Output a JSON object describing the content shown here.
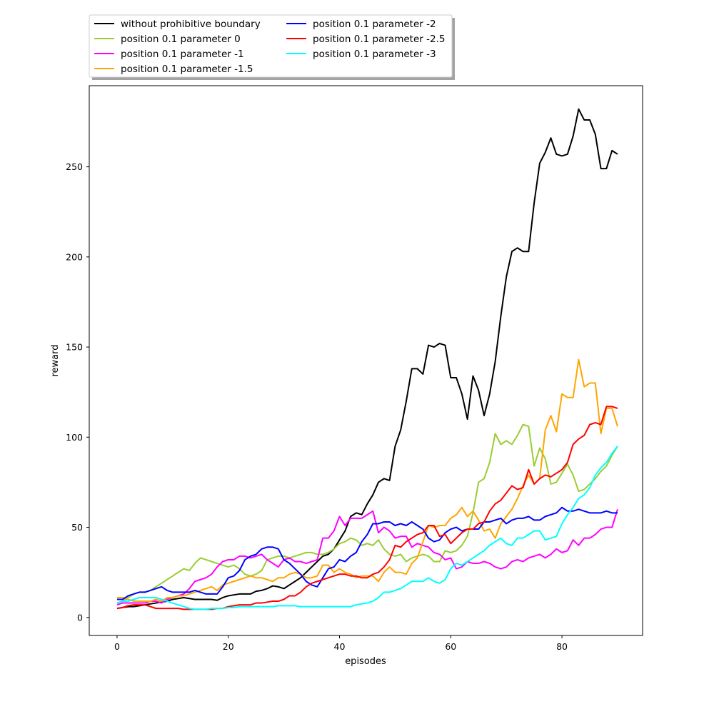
{
  "chart_data": {
    "type": "line",
    "xlabel": "episodes",
    "ylabel": "reward",
    "xlim": [
      -5,
      94.5
    ],
    "ylim": [
      -10,
      295
    ],
    "xticks": [
      0,
      20,
      40,
      60,
      80
    ],
    "yticks": [
      0,
      50,
      100,
      150,
      200,
      250
    ],
    "grid": false,
    "legend_placement": "above the plot, upper-left, two columns, shadowed box",
    "x": [
      0,
      1,
      2,
      3,
      4,
      5,
      6,
      7,
      8,
      9,
      10,
      11,
      12,
      13,
      14,
      15,
      16,
      17,
      18,
      19,
      20,
      21,
      22,
      23,
      24,
      25,
      26,
      27,
      28,
      29,
      30,
      31,
      32,
      33,
      34,
      35,
      36,
      37,
      38,
      39,
      40,
      41,
      42,
      43,
      44,
      45,
      46,
      47,
      48,
      49,
      50,
      51,
      52,
      53,
      54,
      55,
      56,
      57,
      58,
      59,
      60,
      61,
      62,
      63,
      64,
      65,
      66,
      67,
      68,
      69,
      70,
      71,
      72,
      73,
      74,
      75,
      76,
      77,
      78,
      79,
      80,
      81,
      82,
      83,
      84,
      85,
      86,
      87,
      88,
      89,
      90
    ],
    "series": [
      {
        "name": "without prohibitive boundary",
        "color": "#000000",
        "values": [
          5,
          5.5,
          6,
          6,
          6.5,
          7,
          7.5,
          8,
          8.5,
          9,
          10,
          10.5,
          11,
          10.5,
          10,
          10,
          10,
          10,
          9.5,
          11,
          12,
          12.5,
          13,
          13,
          13,
          14.5,
          15,
          16,
          17.5,
          17,
          16,
          18,
          20,
          22,
          25,
          28,
          31,
          34,
          35,
          38,
          43,
          48,
          56,
          58,
          57,
          63,
          68,
          75,
          77,
          76,
          95,
          104,
          120,
          138,
          138,
          135,
          151,
          150,
          152,
          151,
          133,
          133,
          124,
          110,
          134,
          126,
          112,
          124,
          142,
          167,
          189,
          203,
          205,
          203,
          203,
          230,
          252,
          258,
          266,
          257,
          256,
          257,
          267,
          282,
          276,
          276,
          268,
          249,
          249,
          259,
          257
        ]
      },
      {
        "name": "position 0.1 parameter 0",
        "color": "#9acd32",
        "values": [
          8,
          9,
          11,
          13,
          14,
          14,
          15,
          17,
          19,
          21,
          23,
          25,
          27,
          26,
          30,
          33,
          32,
          31,
          30,
          29,
          28,
          29,
          27,
          24,
          23,
          24,
          26,
          32,
          33,
          34,
          34,
          33,
          34,
          35,
          36,
          36,
          35,
          35,
          36,
          38,
          41,
          42,
          44,
          43,
          40,
          41,
          40,
          43,
          38,
          35,
          34,
          35,
          31,
          33,
          34,
          35,
          34,
          31,
          31,
          37,
          36,
          37,
          40,
          45,
          58,
          75,
          77,
          86,
          102,
          96,
          98,
          96,
          101,
          107,
          106,
          84,
          94,
          88,
          74,
          75,
          80,
          85,
          79,
          70,
          71,
          74,
          77,
          81,
          84,
          90,
          95
        ]
      },
      {
        "name": "position 0.1 parameter -1",
        "color": "#ff00ff",
        "values": [
          7,
          8,
          8,
          8,
          8,
          8,
          9,
          9,
          8,
          10,
          11,
          12,
          13,
          16,
          20,
          21,
          22,
          24,
          28,
          31,
          32,
          32,
          34,
          34,
          33,
          34,
          35,
          32,
          30,
          28,
          32,
          33,
          31,
          31,
          30,
          31,
          32,
          44,
          44,
          48,
          56,
          51,
          55,
          55,
          55,
          57,
          59,
          47,
          50,
          48,
          44,
          45,
          45,
          39,
          41,
          40,
          39,
          36,
          35,
          32,
          33,
          27,
          28,
          31,
          30,
          30,
          31,
          30,
          28,
          27,
          28,
          31,
          32,
          31,
          33,
          34,
          35,
          33,
          35,
          38,
          36,
          37,
          43,
          40,
          44,
          44,
          46,
          49,
          50,
          50,
          60
        ]
      },
      {
        "name": "position 0.1 parameter -1.5",
        "color": "#ffa500",
        "values": [
          11,
          11,
          10,
          9,
          9,
          9,
          9,
          10,
          9,
          11,
          11,
          12,
          12,
          13,
          14,
          15,
          16,
          17,
          15,
          18,
          19,
          20,
          21,
          22,
          23,
          22,
          22,
          21,
          20,
          22,
          22,
          24,
          25,
          24,
          22,
          22,
          23,
          29,
          29,
          25,
          27,
          25,
          24,
          22,
          23,
          23,
          23,
          20,
          25,
          28,
          25,
          25,
          24,
          30,
          33,
          42,
          51,
          50,
          51,
          51,
          55,
          57,
          61,
          56,
          59,
          54,
          48,
          49,
          44,
          52,
          56,
          60,
          66,
          73,
          79,
          74,
          77,
          104,
          112,
          103,
          124,
          122,
          122,
          143,
          128,
          130,
          130,
          102,
          116,
          116,
          106
        ]
      },
      {
        "name": "position 0.1 parameter -2",
        "color": "#0000ff",
        "values": [
          10,
          10,
          12,
          13,
          14,
          14,
          15,
          16,
          17,
          15,
          14,
          14,
          14,
          14,
          15,
          14,
          13,
          13,
          13,
          17,
          22,
          23,
          26,
          32,
          34,
          35,
          38,
          39,
          39,
          38,
          32,
          30,
          27,
          24,
          20,
          18,
          17,
          22,
          27,
          28,
          32,
          31,
          34,
          36,
          42,
          46,
          52,
          52,
          53,
          53,
          51,
          52,
          51,
          53,
          51,
          49,
          44,
          42,
          43,
          47,
          49,
          50,
          48,
          49,
          49,
          49,
          53,
          53,
          54,
          55,
          52,
          54,
          55,
          55,
          56,
          54,
          54,
          56,
          57,
          58,
          61,
          59,
          59,
          60,
          59,
          58,
          58,
          58,
          59,
          58,
          58
        ]
      },
      {
        "name": "position 0.1 parameter -2.5",
        "color": "#ff0000",
        "values": [
          5,
          5.5,
          6.5,
          7,
          7,
          7,
          6,
          5,
          5,
          5,
          5,
          5,
          4.5,
          4.5,
          4.5,
          4.5,
          4.5,
          4.5,
          5,
          5,
          6,
          6.5,
          7,
          7,
          7,
          8,
          8,
          8.5,
          9,
          9,
          10,
          12,
          12,
          14,
          17,
          19,
          20,
          21,
          22,
          23,
          24,
          24,
          23,
          23,
          22,
          22,
          24,
          25,
          28,
          32,
          40,
          39,
          42,
          44,
          46,
          47,
          51,
          51,
          45,
          46,
          41,
          44,
          47,
          49,
          49,
          52,
          53,
          59,
          63,
          65,
          69,
          73,
          71,
          72,
          82,
          74,
          77,
          79,
          78,
          80,
          82,
          86,
          96,
          99,
          101,
          107,
          108,
          107,
          117,
          117,
          116
        ]
      },
      {
        "name": "position 0.1 parameter -3",
        "color": "#00ffff",
        "values": [
          8,
          9,
          9,
          10,
          11,
          11,
          11,
          11,
          10,
          9,
          8,
          7,
          6,
          5,
          4.5,
          4.5,
          4.5,
          5,
          5,
          5,
          5.5,
          5.5,
          6,
          6,
          6,
          6,
          6,
          6,
          6,
          6.5,
          6.5,
          6.5,
          6.5,
          6,
          6,
          6,
          6,
          6,
          6,
          6,
          6,
          6,
          6,
          7,
          7.5,
          8,
          9,
          11,
          14,
          14,
          15,
          16,
          18,
          20,
          20,
          20,
          22,
          20,
          19,
          21,
          27,
          30,
          29,
          31,
          33,
          35,
          37,
          40,
          42,
          44,
          41,
          40,
          44,
          44,
          46,
          48,
          48,
          43,
          44,
          45,
          52,
          57,
          61,
          66,
          68,
          72,
          79,
          83,
          86,
          91,
          95
        ]
      }
    ]
  }
}
